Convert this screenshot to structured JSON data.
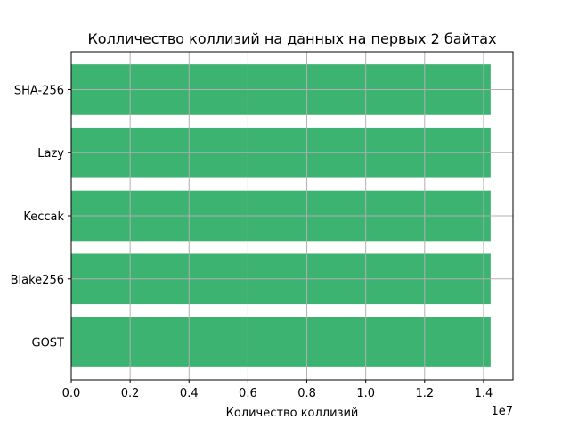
{
  "chart_data": {
    "type": "bar",
    "orientation": "horizontal",
    "title": "Колличество коллизий на данных на первых 2 байтах",
    "xlabel": "Количество коллизий",
    "ylabel": "",
    "categories": [
      "GOST",
      "Blake256",
      "Keccak",
      "Lazy",
      "SHA-256"
    ],
    "values": [
      14240000,
      14240000,
      14240000,
      14240000,
      14240000
    ],
    "xlim": [
      0,
      15000000
    ],
    "xticks": [
      0,
      2000000,
      4000000,
      6000000,
      8000000,
      10000000,
      12000000,
      14000000
    ],
    "xtick_labels": [
      "0.0",
      "0.2",
      "0.4",
      "0.6",
      "0.8",
      "1.0",
      "1.2",
      "1.4"
    ],
    "x_offset_label": "1e7",
    "grid": true,
    "bar_color": "#3cb371",
    "grid_color": "#b0b0b0"
  }
}
